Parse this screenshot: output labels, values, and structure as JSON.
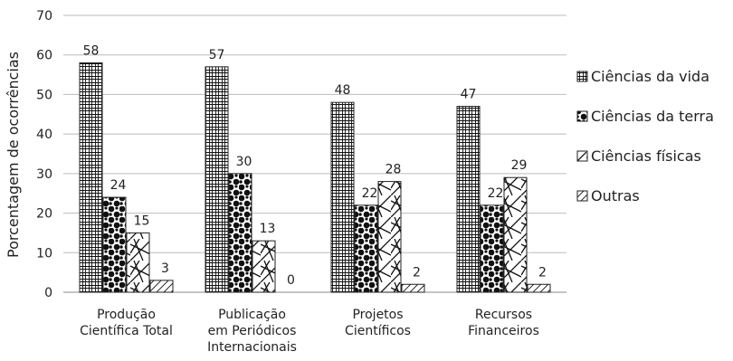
{
  "chart_data": {
    "type": "bar",
    "title": "",
    "xlabel": "",
    "ylabel": "Porcentagem de ocorrências",
    "ylim": [
      0,
      70
    ],
    "yticks": [
      0,
      10,
      20,
      30,
      40,
      50,
      60,
      70
    ],
    "grid": true,
    "legend_position": "right",
    "categories": [
      [
        "Produção",
        "Científica Total"
      ],
      [
        "Publicação",
        "em Periódicos",
        "Internacionais"
      ],
      [
        "Projetos",
        "Científicos"
      ],
      [
        "Recursos",
        "Financeiros"
      ]
    ],
    "series": [
      {
        "name": "Ciências da vida",
        "values": [
          58,
          57,
          48,
          47
        ],
        "pattern": "grid"
      },
      {
        "name": "Ciências da terra",
        "values": [
          24,
          30,
          22,
          22
        ],
        "pattern": "dots"
      },
      {
        "name": "Ciências físicas",
        "values": [
          15,
          13,
          28,
          29
        ],
        "pattern": "cross"
      },
      {
        "name": "Outras",
        "values": [
          3,
          0,
          2,
          2
        ],
        "pattern": "hatch"
      }
    ]
  }
}
